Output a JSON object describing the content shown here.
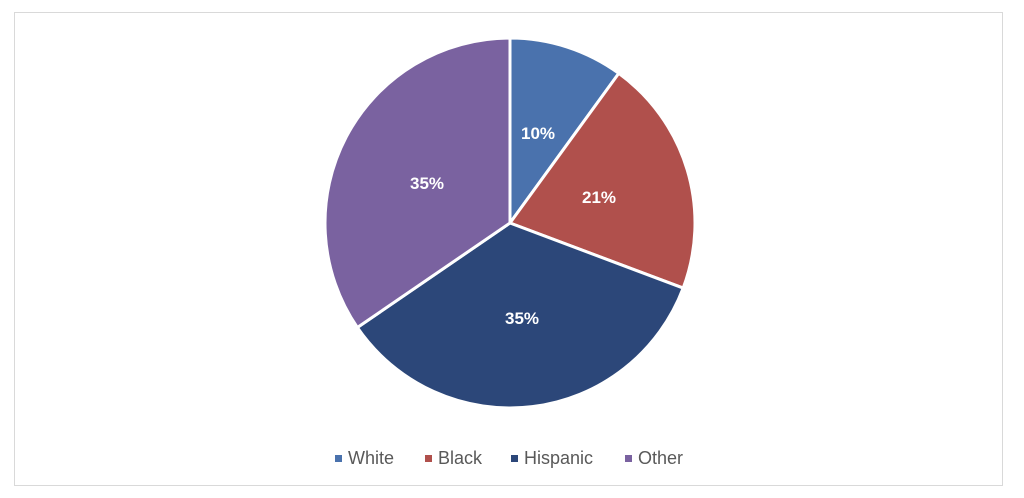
{
  "chart_data": {
    "type": "pie",
    "title": "",
    "categories": [
      "White",
      "Black",
      "Hispanic",
      "Other"
    ],
    "values": [
      10,
      21,
      35,
      35
    ],
    "labels": [
      "10%",
      "21%",
      "35%",
      "35%"
    ],
    "colors": [
      "#4A72AD",
      "#B0504C",
      "#2C4779",
      "#7A62A0"
    ],
    "start_angle_deg": 0,
    "direction": "clockwise",
    "legend_position": "bottom",
    "slice_angles_deg": [
      [
        0,
        36
      ],
      [
        36,
        110.6
      ],
      [
        110.6,
        235.6
      ],
      [
        235.6,
        360
      ]
    ]
  },
  "legend": {
    "items": [
      {
        "label": "White",
        "color": "#4A72AD"
      },
      {
        "label": "Black",
        "color": "#B0504C"
      },
      {
        "label": "Hispanic",
        "color": "#2C4779"
      },
      {
        "label": "Other",
        "color": "#7A62A0"
      }
    ]
  },
  "slice_labels": {
    "white": "10%",
    "black": "21%",
    "hispanic": "35%",
    "other": "35%"
  }
}
